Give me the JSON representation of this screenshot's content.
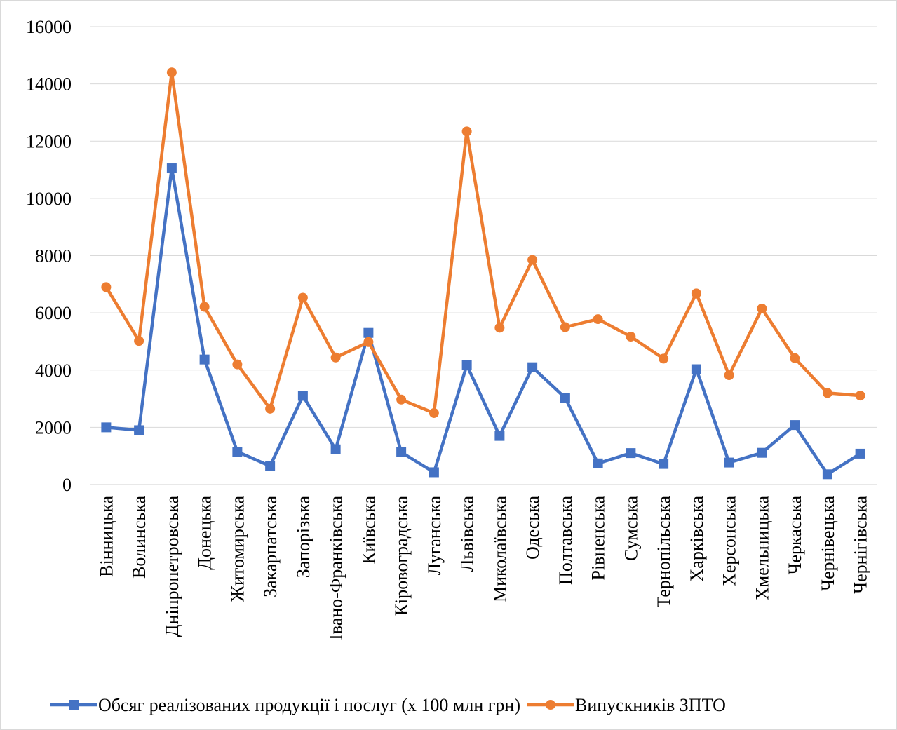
{
  "chart_data": {
    "type": "line",
    "title": "",
    "xlabel": "",
    "ylabel": "",
    "ylim": [
      0,
      16000
    ],
    "yticks": [
      0,
      2000,
      4000,
      6000,
      8000,
      10000,
      12000,
      14000,
      16000
    ],
    "grid": true,
    "legend_position": "bottom",
    "categories": [
      "Вінницька",
      "Волинська",
      "Дніпропетровська",
      "Донецька",
      "Житомирська",
      "Закарпатська",
      "Запорізька",
      "Івано-Франківська",
      "Київська",
      "Кіровоградська",
      "Луганська",
      "Львівська",
      "Миколаївська",
      "Одеська",
      "Полтавська",
      "Рівненська",
      "Сумська",
      "Тернопільська",
      "Харківська",
      "Херсонська",
      "Хмельницька",
      "Черкаська",
      "Чернівецька",
      "Чернігівська"
    ],
    "series": [
      {
        "name": "Обсяг реалізованих продукції і послуг (х 100 млн грн)",
        "color": "#4472c4",
        "marker": "square",
        "values": [
          2000,
          1900,
          11050,
          4370,
          1150,
          650,
          3100,
          1230,
          5300,
          1130,
          430,
          4170,
          1700,
          4100,
          3030,
          740,
          1100,
          720,
          4030,
          770,
          1110,
          2080,
          360,
          1080
        ]
      },
      {
        "name": "Випускників ЗПТО",
        "color": "#ed7d31",
        "marker": "circle",
        "values": [
          6900,
          5020,
          14400,
          6210,
          4200,
          2650,
          6530,
          4440,
          4980,
          2970,
          2500,
          12340,
          5480,
          7850,
          5500,
          5780,
          5170,
          4400,
          6680,
          3820,
          6150,
          4420,
          3200,
          3110
        ]
      }
    ]
  }
}
